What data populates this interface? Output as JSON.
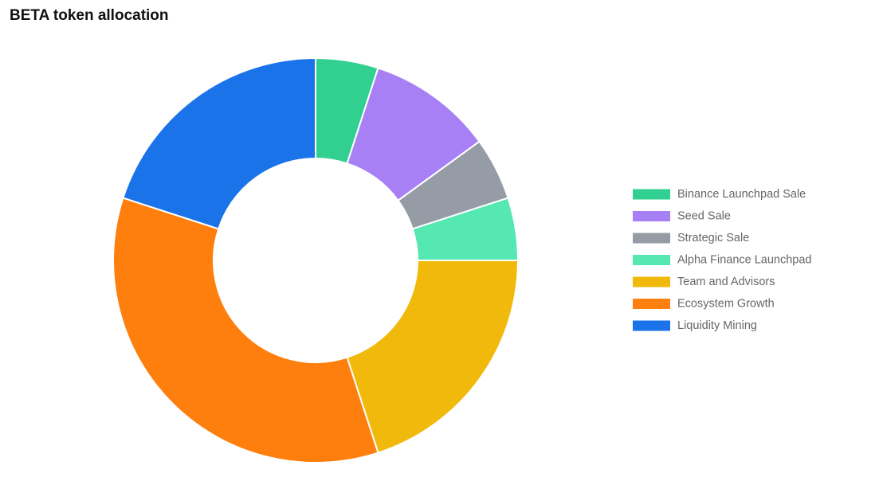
{
  "chart_data": {
    "type": "doughnut",
    "title": "BETA token allocation",
    "categories": [
      "Binance Launchpad Sale",
      "Seed Sale",
      "Strategic Sale",
      "Alpha Finance Launchpad",
      "Team and Advisors",
      "Ecosystem Growth",
      "Liquidity Mining"
    ],
    "values": [
      5,
      10,
      5,
      5,
      20,
      35,
      20
    ],
    "colors": [
      "#31d090",
      "#a880f5",
      "#959ca6",
      "#55e8b3",
      "#f0b90c",
      "#fe7f0e",
      "#1a73e8"
    ],
    "legend": "right"
  }
}
